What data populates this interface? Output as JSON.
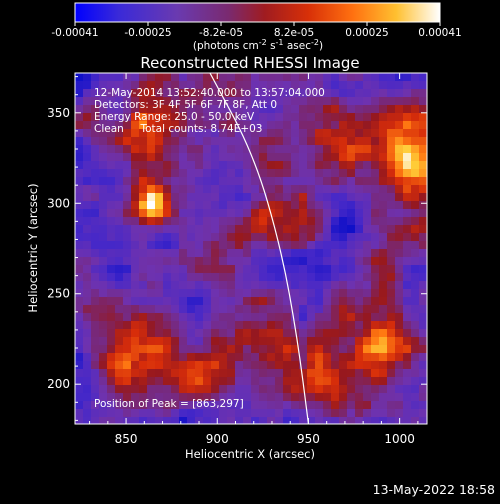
{
  "colorbar": {
    "tick_labels": [
      "-0.00041",
      "-0.00025",
      "-8.2e-05",
      "8.2e-05",
      "0.00025",
      "0.00041"
    ],
    "range": [
      -0.00041,
      0.00041
    ],
    "unit_label": "(photons cm",
    "unit_sup1": "-2",
    "unit_mid": " s",
    "unit_sup2": "-1",
    "unit_mid2": " asec",
    "unit_sup3": "-2",
    "unit_end": ")",
    "colormap": [
      "#0000ff",
      "#5a2ad0",
      "#7a3aa8",
      "#8c2a3c",
      "#b51f16",
      "#e8400a",
      "#ff8a12",
      "#ffd23a",
      "#ffffff"
    ]
  },
  "chart_data": {
    "type": "heatmap",
    "title": "Reconstructed RHESSI Image",
    "xlabel": "Heliocentric X (arcsec)",
    "ylabel": "Heliocentric Y (arcsec)",
    "xlim": [
      822,
      1015
    ],
    "ylim": [
      178,
      372
    ],
    "x_ticks": [
      850,
      900,
      950,
      1000
    ],
    "y_ticks": [
      200,
      250,
      300,
      350
    ],
    "peak_position": [
      863,
      297
    ],
    "limb_curve_points": [
      [
        896,
        372
      ],
      [
        920,
        327
      ],
      [
        935,
        275
      ],
      [
        944,
        225
      ],
      [
        950,
        178
      ]
    ],
    "grid": false
  },
  "annotations": {
    "time_range": "12-May-2014 13:52:40.000 to 13:57:04.000",
    "detectors": "Detectors: 3F 4F 5F 6F 7F 8F, Att 0",
    "energy_range": "Energy Range: 25.0 - 50.0 keV",
    "method": "Clean     Total counts: 8.74E+03",
    "peak_label": "Position of Peak = [863,297]"
  },
  "footer": {
    "timestamp": "13-May-2022 18:58"
  }
}
